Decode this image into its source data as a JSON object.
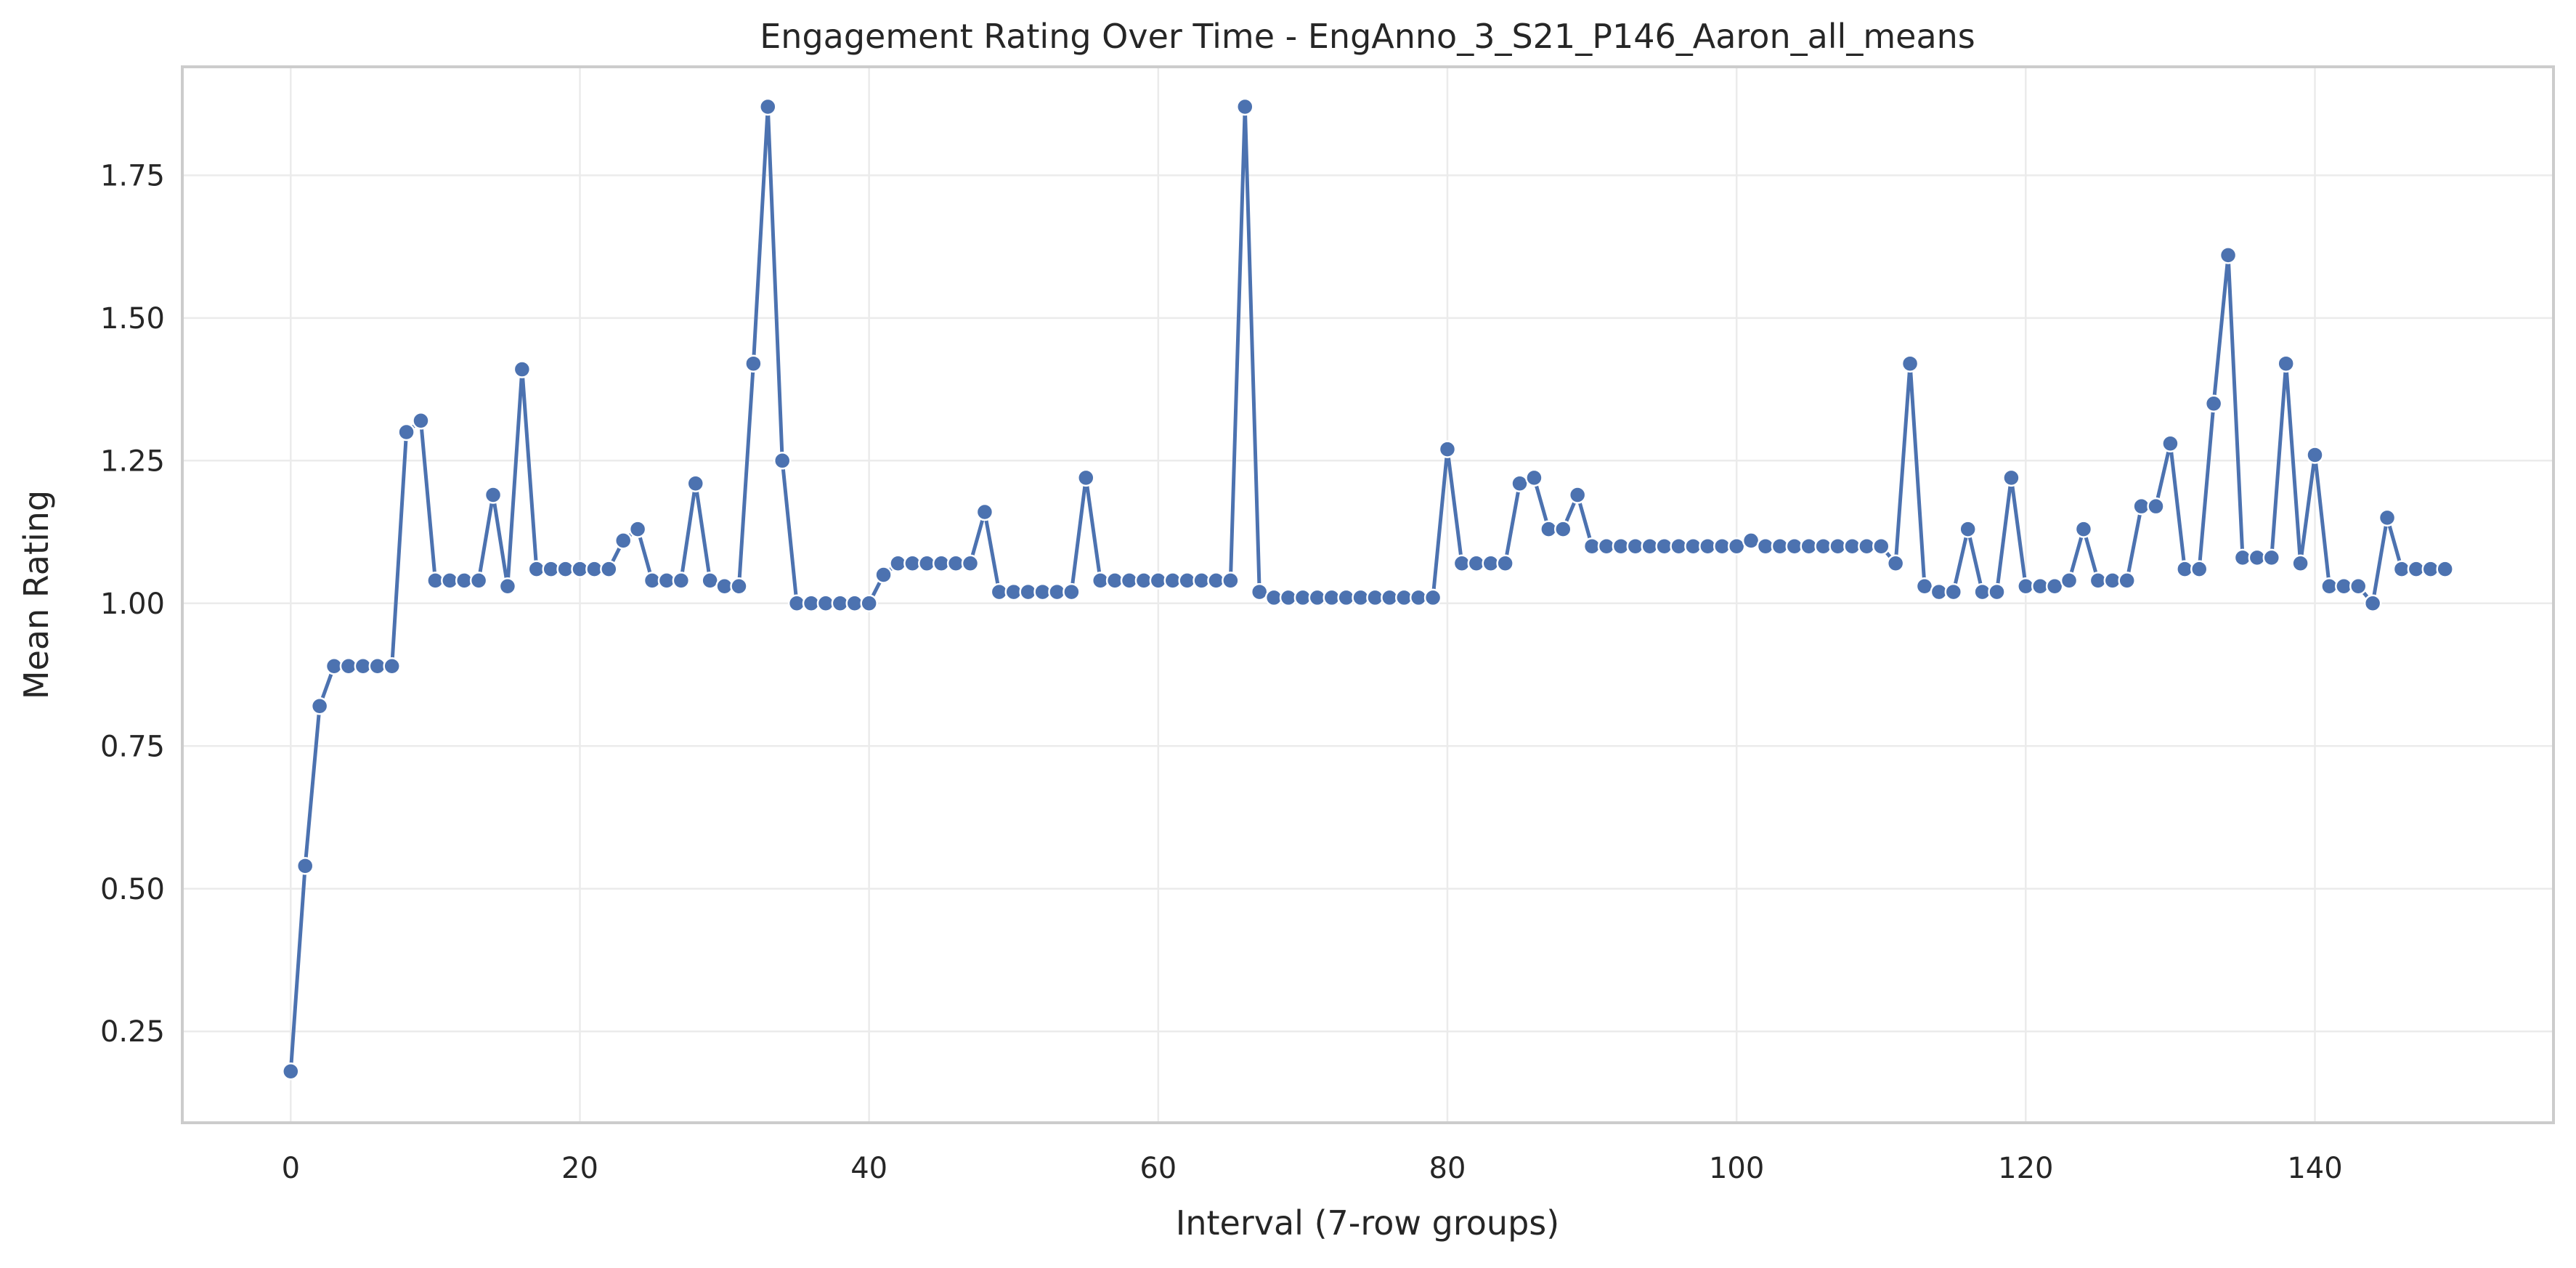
{
  "chart_data": {
    "type": "line",
    "title": "Engagement Rating Over Time -  EngAnno_3_S21_P146_Aaron_all_means",
    "xlabel": "Interval (7-row groups)",
    "ylabel": "Mean Rating",
    "xlim": [
      -7.5,
      156.5
    ],
    "ylim": [
      0.09,
      1.94
    ],
    "xticks": [
      0,
      20,
      40,
      60,
      80,
      100,
      120,
      140
    ],
    "xtick_labels": [
      "0",
      "20",
      "40",
      "60",
      "80",
      "100",
      "120",
      "140"
    ],
    "yticks": [
      0.25,
      0.5,
      0.75,
      1.0,
      1.25,
      1.5,
      1.75
    ],
    "ytick_labels": [
      "0.25",
      "0.50",
      "0.75",
      "1.00",
      "1.25",
      "1.50",
      "1.75"
    ],
    "grid": true,
    "legend": "none",
    "colors": {
      "line": "#4c72b0",
      "grid": "#ebebeb",
      "spine": "#cccccc",
      "text": "#262626"
    },
    "series": [
      {
        "x": [
          0,
          1,
          2,
          3,
          4,
          5,
          6,
          7,
          8,
          9,
          10,
          11,
          12,
          13,
          14,
          15,
          16,
          17,
          18,
          19,
          20,
          21,
          22,
          23,
          24,
          25,
          26,
          27,
          28,
          29,
          30,
          31,
          32,
          33,
          34,
          35,
          36,
          37,
          38,
          39,
          40,
          41,
          42,
          43,
          44,
          45,
          46,
          47,
          48,
          49,
          50,
          51,
          52,
          53,
          54,
          55,
          56,
          57,
          58,
          59,
          60,
          61,
          62,
          63,
          64,
          65,
          66,
          67,
          68,
          69,
          70,
          71,
          72,
          73,
          74,
          75,
          76,
          77,
          78,
          79,
          80,
          81,
          82,
          83,
          84,
          85,
          86,
          87,
          88,
          89,
          90,
          91,
          92,
          93,
          94,
          95,
          96,
          97,
          98,
          99,
          100,
          101,
          102,
          103,
          104,
          105,
          106,
          107,
          108,
          109,
          110,
          111,
          112,
          113,
          114,
          115,
          116,
          117,
          118,
          119,
          120,
          121,
          122,
          123,
          124,
          125,
          126,
          127,
          128,
          129,
          130,
          131,
          132,
          133,
          134,
          135,
          136,
          137,
          138,
          139,
          140,
          141,
          142,
          143,
          144,
          145,
          146,
          147,
          148,
          149
        ],
        "values": [
          0.18,
          0.54,
          0.82,
          0.89,
          0.89,
          0.89,
          0.89,
          0.89,
          1.3,
          1.32,
          1.04,
          1.04,
          1.04,
          1.04,
          1.19,
          1.03,
          1.41,
          1.06,
          1.06,
          1.06,
          1.06,
          1.06,
          1.06,
          1.11,
          1.13,
          1.04,
          1.04,
          1.04,
          1.21,
          1.04,
          1.03,
          1.03,
          1.42,
          1.87,
          1.25,
          1.0,
          1.0,
          1.0,
          1.0,
          1.0,
          1.0,
          1.05,
          1.07,
          1.07,
          1.07,
          1.07,
          1.07,
          1.07,
          1.16,
          1.02,
          1.02,
          1.02,
          1.02,
          1.02,
          1.02,
          1.22,
          1.04,
          1.04,
          1.04,
          1.04,
          1.04,
          1.04,
          1.04,
          1.04,
          1.04,
          1.04,
          1.87,
          1.02,
          1.01,
          1.01,
          1.01,
          1.01,
          1.01,
          1.01,
          1.01,
          1.01,
          1.01,
          1.01,
          1.01,
          1.01,
          1.27,
          1.07,
          1.07,
          1.07,
          1.07,
          1.21,
          1.22,
          1.13,
          1.13,
          1.19,
          1.1,
          1.1,
          1.1,
          1.1,
          1.1,
          1.1,
          1.1,
          1.1,
          1.1,
          1.1,
          1.1,
          1.11,
          1.1,
          1.1,
          1.1,
          1.1,
          1.1,
          1.1,
          1.1,
          1.1,
          1.1,
          1.07,
          1.42,
          1.03,
          1.02,
          1.02,
          1.13,
          1.02,
          1.02,
          1.22,
          1.03,
          1.03,
          1.03,
          1.04,
          1.13,
          1.04,
          1.04,
          1.04,
          1.17,
          1.17,
          1.28,
          1.06,
          1.06,
          1.35,
          1.61,
          1.08,
          1.08,
          1.08,
          1.42,
          1.07,
          1.26,
          1.03,
          1.03,
          1.03,
          1.0,
          1.15,
          1.06,
          1.06,
          1.06,
          1.06
        ]
      }
    ]
  }
}
